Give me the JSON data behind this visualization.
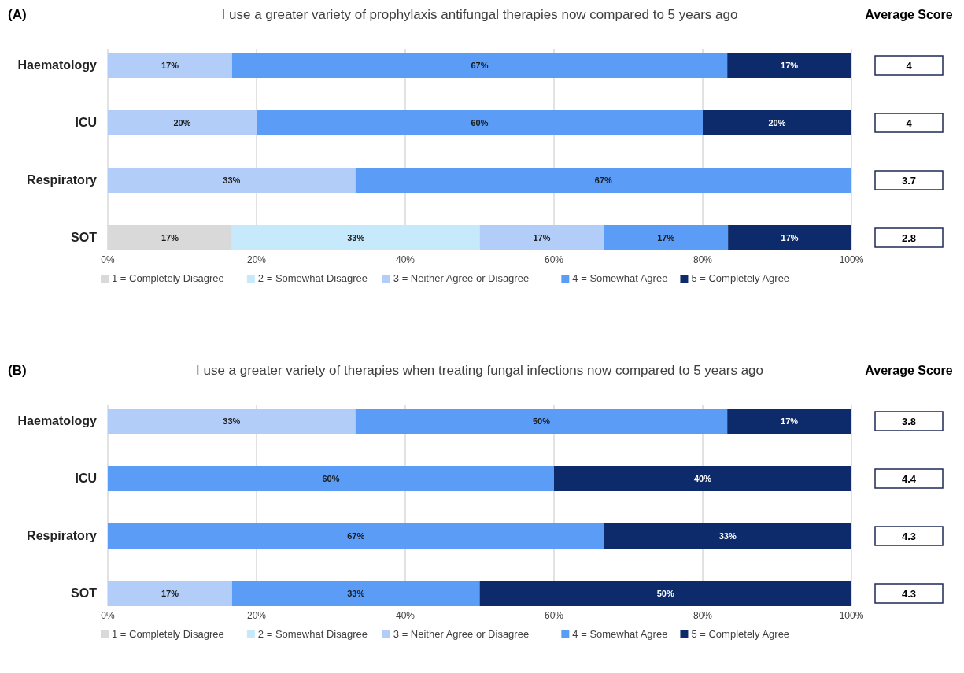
{
  "chart_data": [
    {
      "type": "bar",
      "orientation": "horizontal",
      "stacked": true,
      "title": "I use a greater variety of prophylaxis antifungal therapies now compared to 5 years ago",
      "categories": [
        "Haematology",
        "ICU",
        "Respiratory",
        "SOT"
      ],
      "series": [
        {
          "name": "1 = Completely Disagree",
          "color": "#d9d9d9",
          "values": [
            null,
            null,
            null,
            16.7
          ],
          "value_labels": [
            null,
            null,
            null,
            "17%"
          ]
        },
        {
          "name": "2 = Somewhat Disagree",
          "color": "#c6e9fb",
          "values": [
            null,
            null,
            null,
            33.3
          ],
          "value_labels": [
            null,
            null,
            null,
            "33%"
          ]
        },
        {
          "name": "3 = Neither Agree or Disagree",
          "color": "#b3cdf9",
          "values": [
            16.7,
            20,
            33.3,
            16.7
          ],
          "value_labels": [
            "17%",
            "20%",
            "33%",
            "17%"
          ]
        },
        {
          "name": "4 = Somewhat Agree",
          "color": "#5b9cf7",
          "values": [
            66.6,
            60,
            66.7,
            16.7
          ],
          "value_labels": [
            "67%",
            "60%",
            "67%",
            "17%"
          ]
        },
        {
          "name": "5 = Completely Agree",
          "color": "#0d2b6b",
          "values": [
            16.7,
            20,
            null,
            16.6
          ],
          "value_labels": [
            "17%",
            "20%",
            null,
            "17%"
          ]
        }
      ],
      "xlim": [
        0,
        100
      ],
      "xticks": [
        {
          "value": 0,
          "label": "0%"
        },
        {
          "value": 20,
          "label": "20%"
        },
        {
          "value": 40,
          "label": "40%"
        },
        {
          "value": 60,
          "label": "60%"
        },
        {
          "value": 80,
          "label": "80%"
        },
        {
          "value": 100,
          "label": "100%"
        }
      ],
      "grid": "x",
      "legend": "bottom",
      "annotations": [
        "(A)",
        "Average Score",
        "4",
        "4",
        "3.7",
        "2.8"
      ]
    },
    {
      "type": "bar",
      "orientation": "horizontal",
      "stacked": true,
      "title": "I use a greater variety of therapies when treating fungal infections now compared to 5 years ago",
      "categories": [
        "Haematology",
        "ICU",
        "Respiratory",
        "SOT"
      ],
      "series": [
        {
          "name": "1 = Completely Disagree",
          "color": "#d9d9d9",
          "values": [
            null,
            null,
            null,
            null
          ],
          "value_labels": [
            null,
            null,
            null,
            null
          ]
        },
        {
          "name": "2 = Somewhat Disagree",
          "color": "#c6e9fb",
          "values": [
            null,
            null,
            null,
            null
          ],
          "value_labels": [
            null,
            null,
            null,
            null
          ]
        },
        {
          "name": "3 = Neither Agree or Disagree",
          "color": "#b3cdf9",
          "values": [
            33.3,
            null,
            null,
            16.7
          ],
          "value_labels": [
            "33%",
            null,
            null,
            "17%"
          ]
        },
        {
          "name": "4 = Somewhat Agree",
          "color": "#5b9cf7",
          "values": [
            50,
            60,
            66.7,
            33.3
          ],
          "value_labels": [
            "50%",
            "60%",
            "67%",
            "33%"
          ]
        },
        {
          "name": "5 = Completely Agree",
          "color": "#0d2b6b",
          "values": [
            16.7,
            40,
            33.3,
            50
          ],
          "value_labels": [
            "17%",
            "40%",
            "33%",
            "50%"
          ]
        }
      ],
      "xlim": [
        0,
        100
      ],
      "xticks": [
        {
          "value": 0,
          "label": "0%"
        },
        {
          "value": 20,
          "label": "20%"
        },
        {
          "value": 40,
          "label": "40%"
        },
        {
          "value": 60,
          "label": "60%"
        },
        {
          "value": 80,
          "label": "80%"
        },
        {
          "value": 100,
          "label": "100%"
        }
      ],
      "grid": "x",
      "legend": "bottom",
      "annotations": [
        "(B)",
        "Average Score",
        "3.8",
        "4.4",
        "4.3",
        "4.3"
      ]
    }
  ]
}
